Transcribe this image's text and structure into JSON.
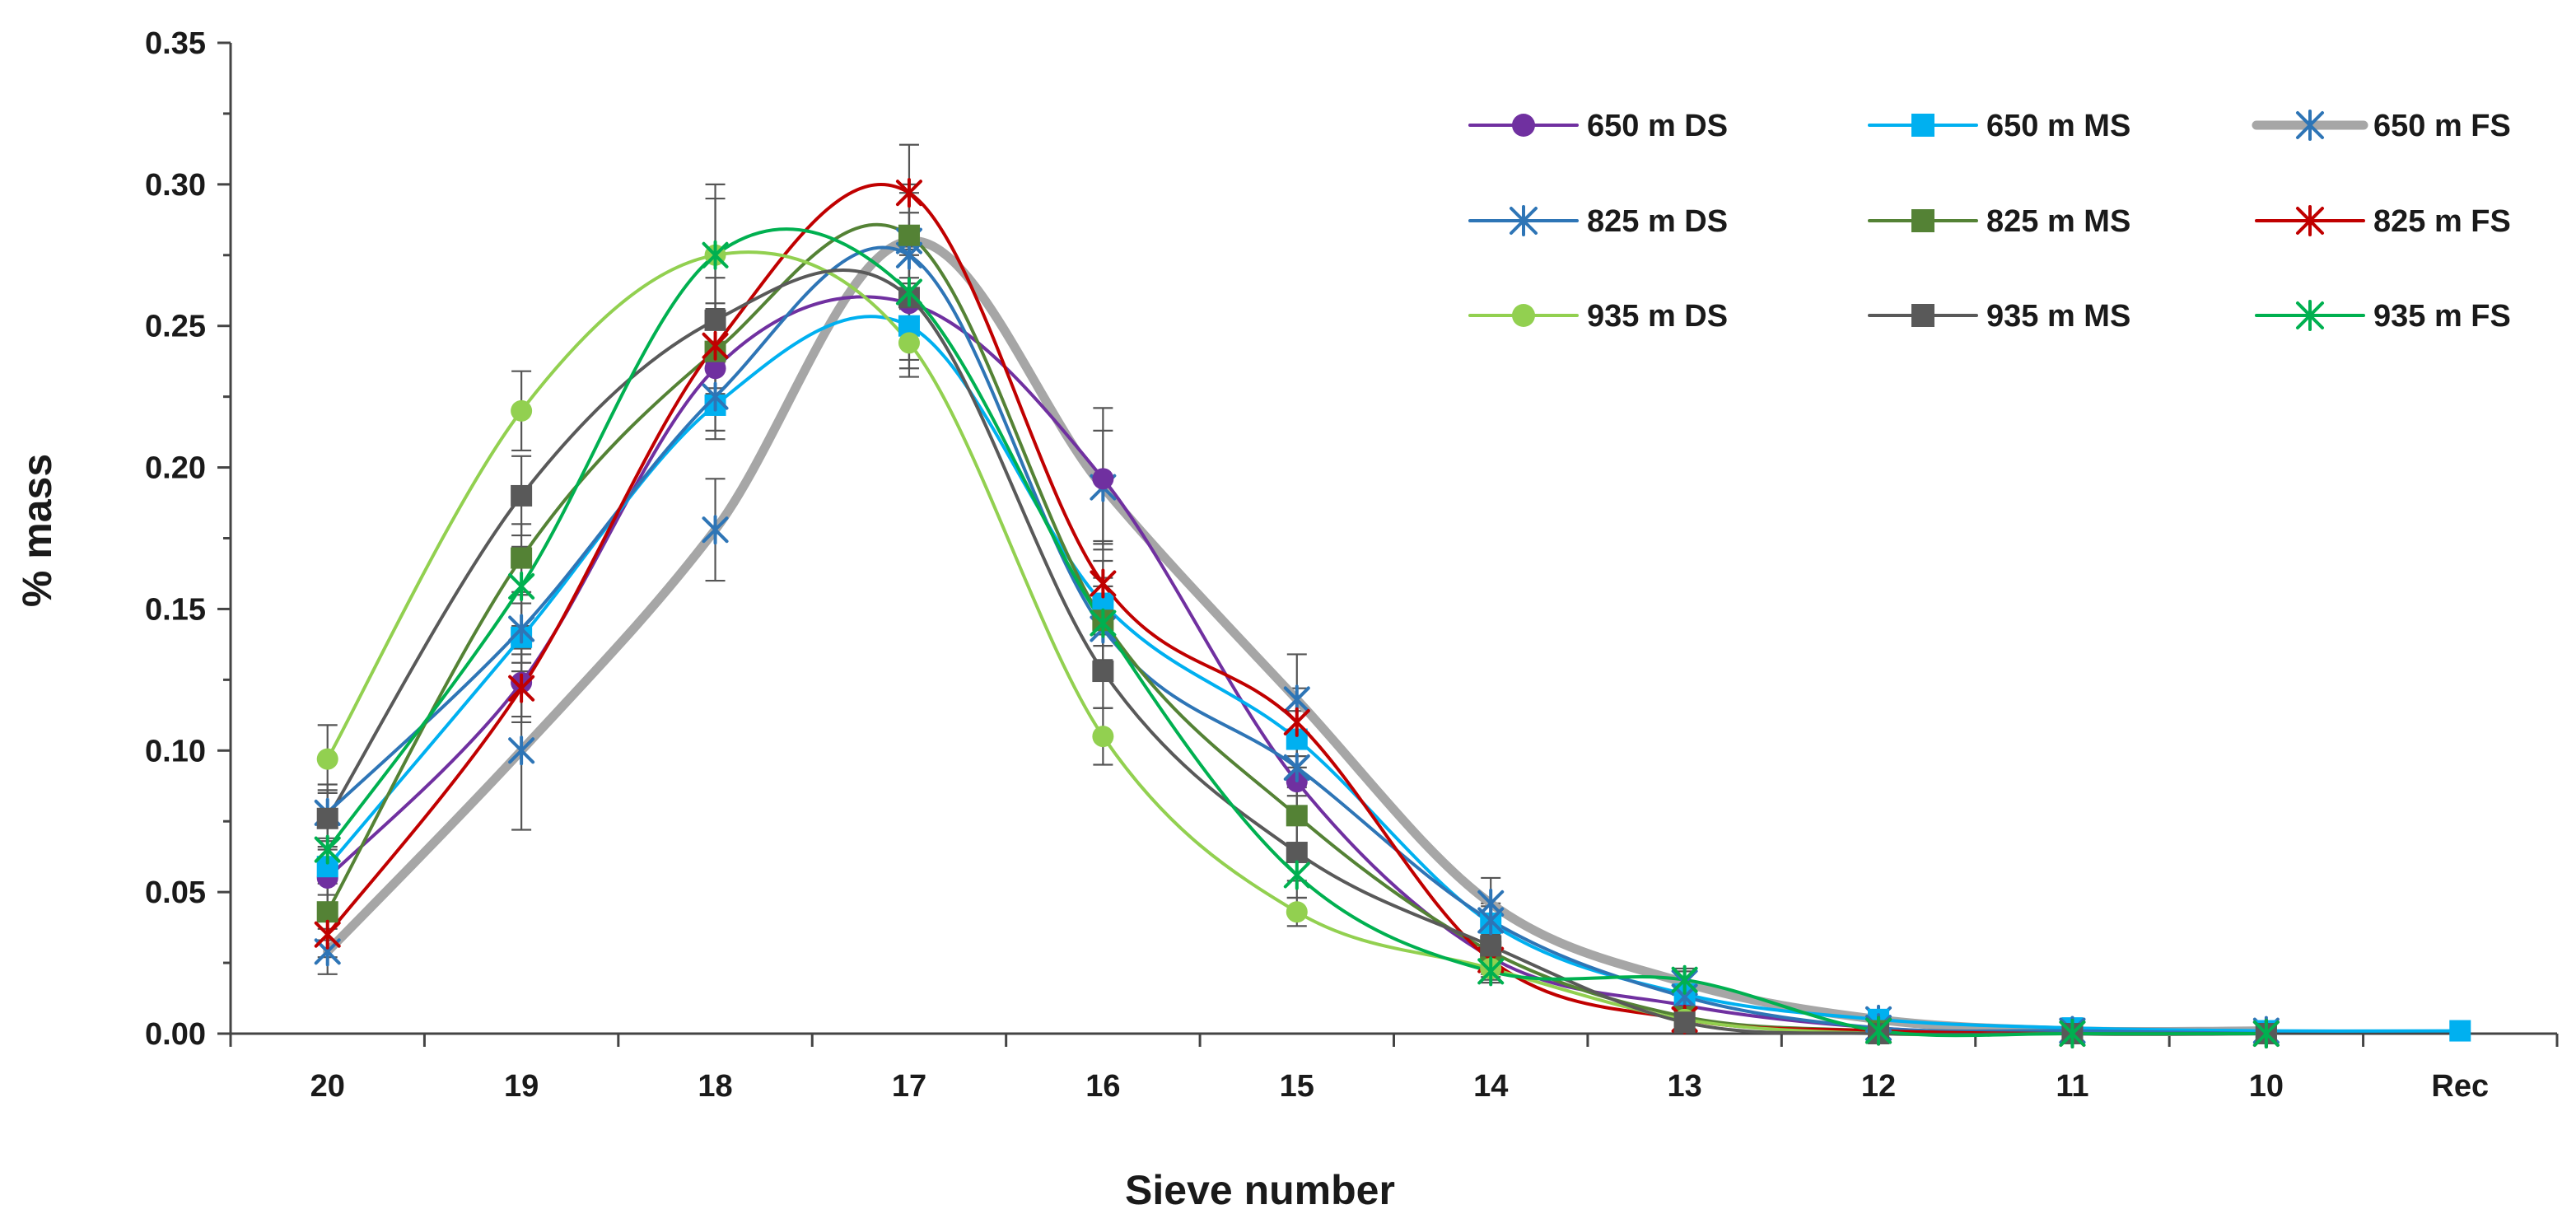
{
  "chart_data": {
    "type": "line",
    "title": "",
    "xlabel": "Sieve number",
    "ylabel": "% mass",
    "categories": [
      "20",
      "19",
      "18",
      "17",
      "16",
      "15",
      "14",
      "13",
      "12",
      "11",
      "10",
      "Rec"
    ],
    "ylim": [
      0,
      0.35
    ],
    "yticks": [
      "0.00",
      "0.05",
      "0.10",
      "0.15",
      "0.20",
      "0.25",
      "0.30",
      "0.35"
    ],
    "legend_position": "top-right",
    "series": [
      {
        "name": "650 m DS",
        "color": "#7030a0",
        "marker": "circle",
        "values": [
          0.055,
          0.124,
          0.235,
          0.258,
          0.196,
          0.089,
          0.027,
          0.01,
          0.002,
          0.0,
          0.0,
          null
        ],
        "errors": [
          0.01,
          0.012,
          0.015,
          0.02,
          0.025,
          0.012,
          0.006,
          0.004,
          0.001,
          0.0,
          0.0,
          null
        ]
      },
      {
        "name": "650 m MS",
        "color": "#00b0f0",
        "marker": "square",
        "values": [
          0.059,
          0.14,
          0.222,
          0.25,
          0.152,
          0.104,
          0.039,
          0.014,
          0.005,
          0.002,
          0.001,
          0.001
        ],
        "errors": [
          0.01,
          0.012,
          0.012,
          0.015,
          0.015,
          0.01,
          0.006,
          0.004,
          0.001,
          0.0,
          0.0,
          0.0
        ]
      },
      {
        "name": "650 m FS",
        "color": "#a6a6a6",
        "marker": "asterisk",
        "markerColor": "#2e75b6",
        "thick": true,
        "values": [
          0.029,
          0.1,
          0.178,
          0.28,
          0.193,
          0.118,
          0.046,
          0.018,
          0.005,
          0.001,
          0.001,
          null
        ],
        "errors": [
          0.008,
          0.028,
          0.018,
          0.02,
          0.02,
          0.016,
          0.009,
          0.004,
          0.001,
          0.0,
          0.0,
          null
        ]
      },
      {
        "name": "825 m DS",
        "color": "#2e75b6",
        "marker": "asterisk",
        "values": [
          0.078,
          0.143,
          0.225,
          0.275,
          0.143,
          0.094,
          0.04,
          0.013,
          0.002,
          0.001,
          0.0,
          null
        ],
        "errors": [
          0.01,
          0.012,
          0.012,
          0.015,
          0.015,
          0.01,
          0.006,
          0.004,
          0.001,
          0.0,
          0.0,
          null
        ]
      },
      {
        "name": "825 m MS",
        "color": "#548235",
        "marker": "square",
        "values": [
          0.043,
          0.168,
          0.241,
          0.282,
          0.146,
          0.077,
          0.029,
          0.006,
          0.001,
          0.0,
          0.0,
          null
        ],
        "errors": [
          0.01,
          0.012,
          0.015,
          0.015,
          0.015,
          0.01,
          0.006,
          0.003,
          0.001,
          0.0,
          0.0,
          null
        ]
      },
      {
        "name": "825 m FS",
        "color": "#c00000",
        "marker": "asterisk",
        "values": [
          0.035,
          0.122,
          0.243,
          0.297,
          0.159,
          0.11,
          0.026,
          0.005,
          0.001,
          0.0,
          0.0,
          null
        ],
        "errors": [
          0.008,
          0.012,
          0.015,
          0.017,
          0.015,
          0.012,
          0.006,
          0.003,
          0.001,
          0.0,
          0.0,
          null
        ]
      },
      {
        "name": "935 m DS",
        "color": "#92d050",
        "marker": "circle",
        "values": [
          0.097,
          0.22,
          0.275,
          0.244,
          0.105,
          0.043,
          0.023,
          0.005,
          0.0,
          0.0,
          0.0,
          null
        ],
        "errors": [
          0.012,
          0.014,
          0.025,
          0.012,
          0.01,
          0.005,
          0.004,
          0.002,
          0.0,
          0.0,
          0.0,
          null
        ]
      },
      {
        "name": "935 m MS",
        "color": "#595959",
        "marker": "square",
        "values": [
          0.076,
          0.19,
          0.252,
          0.26,
          0.128,
          0.064,
          0.031,
          0.004,
          0.0,
          0.0,
          0.0,
          null
        ],
        "errors": [
          0.01,
          0.014,
          0.015,
          0.015,
          0.013,
          0.01,
          0.006,
          0.002,
          0.0,
          0.0,
          0.0,
          null
        ]
      },
      {
        "name": "935 m FS",
        "color": "#00b050",
        "marker": "asterisk",
        "values": [
          0.065,
          0.158,
          0.275,
          0.262,
          0.145,
          0.056,
          0.022,
          0.019,
          0.001,
          0.0,
          0.0,
          null
        ],
        "errors": [
          0.01,
          0.014,
          0.02,
          0.015,
          0.013,
          0.008,
          0.004,
          0.004,
          0.001,
          0.0,
          0.0,
          null
        ]
      }
    ]
  }
}
